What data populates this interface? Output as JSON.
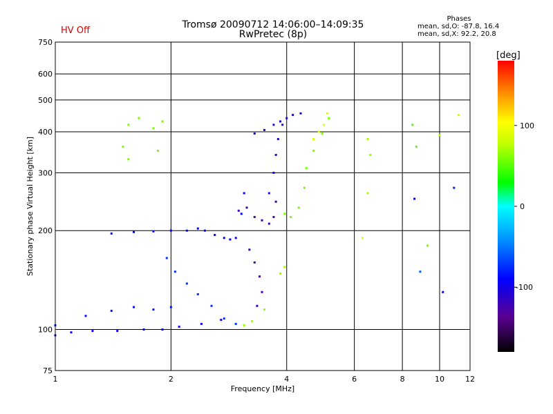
{
  "header": {
    "title_line1": "Tromsø 20090712 14:06:00–14:09:35",
    "title_line2": "RwPretec (8p)",
    "hv_status": "HV Off",
    "phases_heading": "Phases",
    "phases_line1": "mean, sd,O: -87.8, 16.4",
    "phases_line2": "mean, sd,X:  92.2, 20.8"
  },
  "chart_data": {
    "type": "scatter",
    "xlabel": "Frequency [MHz]",
    "ylabel": "Stationary phase Virtual Height [km]",
    "x_scale": "log",
    "y_scale": "log",
    "xlim": [
      1,
      12
    ],
    "ylim": [
      75,
      750
    ],
    "x_ticks": [
      1,
      2,
      4,
      6,
      8,
      10,
      12
    ],
    "y_ticks": [
      75,
      100,
      200,
      300,
      400,
      500,
      600,
      750
    ],
    "grid": true,
    "colorbar": {
      "label": "[deg]",
      "range": [
        -180,
        180
      ],
      "ticks": [
        -100,
        0,
        100
      ]
    },
    "series": [
      {
        "name": "",
        "points": [
          [
            1.0,
            96,
            -95
          ],
          [
            1.1,
            98,
            -95
          ],
          [
            1.25,
            99,
            -95
          ],
          [
            1.45,
            99,
            -95
          ],
          [
            1.7,
            100,
            -95
          ],
          [
            1.9,
            100,
            -95
          ],
          [
            2.1,
            102,
            -95
          ],
          [
            2.4,
            104,
            -95
          ],
          [
            2.7,
            107,
            -95
          ]
        ]
      },
      {
        "name": "",
        "points": [
          [
            1.0,
            103,
            -85
          ],
          [
            1.2,
            110,
            -85
          ],
          [
            1.4,
            114,
            -85
          ],
          [
            1.6,
            117,
            -85
          ],
          [
            1.8,
            115,
            -85
          ],
          [
            2.0,
            117,
            -85
          ]
        ]
      },
      {
        "name": "",
        "points": [
          [
            1.4,
            196,
            -95
          ],
          [
            1.6,
            198,
            -95
          ],
          [
            1.8,
            199,
            -95
          ],
          [
            2.0,
            200,
            -95
          ],
          [
            2.2,
            200,
            -95
          ],
          [
            2.35,
            203,
            -95
          ]
        ]
      },
      {
        "name": "",
        "points": [
          [
            2.45,
            200,
            -90
          ],
          [
            2.6,
            194,
            -90
          ],
          [
            2.75,
            190,
            -90
          ],
          [
            2.85,
            188,
            -90
          ],
          [
            2.95,
            190,
            -90
          ],
          [
            3.05,
            225,
            -90
          ],
          [
            3.1,
            260,
            -90
          ]
        ]
      },
      {
        "name": "",
        "points": [
          [
            1.95,
            165,
            -75
          ],
          [
            2.05,
            150,
            -75
          ],
          [
            2.2,
            138,
            -75
          ],
          [
            2.35,
            128,
            -75
          ],
          [
            2.55,
            118,
            -75
          ],
          [
            2.75,
            108,
            -75
          ],
          [
            2.95,
            104,
            -75
          ]
        ]
      },
      {
        "name": "",
        "points": [
          [
            3.0,
            230,
            -120
          ],
          [
            3.15,
            235,
            -120
          ],
          [
            3.3,
            220,
            -120
          ],
          [
            3.45,
            215,
            -120
          ],
          [
            3.6,
            210,
            -120
          ],
          [
            3.7,
            220,
            -120
          ],
          [
            3.75,
            245,
            -120
          ]
        ]
      },
      {
        "name": "",
        "points": [
          [
            3.2,
            175,
            -120
          ],
          [
            3.3,
            160,
            -120
          ],
          [
            3.4,
            145,
            -120
          ],
          [
            3.45,
            130,
            -120
          ],
          [
            3.35,
            118,
            -120
          ]
        ]
      },
      {
        "name": "",
        "points": [
          [
            3.6,
            260,
            -105
          ],
          [
            3.7,
            300,
            -105
          ],
          [
            3.75,
            340,
            -105
          ],
          [
            3.8,
            380,
            -105
          ],
          [
            3.9,
            420,
            -105
          ],
          [
            4.0,
            440,
            -105
          ],
          [
            4.15,
            450,
            -105
          ],
          [
            4.35,
            455,
            -105
          ]
        ]
      },
      {
        "name": "",
        "points": [
          [
            3.3,
            395,
            -110
          ],
          [
            3.5,
            405,
            -110
          ],
          [
            3.7,
            420,
            -110
          ],
          [
            3.85,
            430,
            -110
          ]
        ]
      },
      {
        "name": "",
        "points": [
          [
            3.95,
            225,
            60
          ],
          [
            4.1,
            220,
            60
          ],
          [
            4.3,
            235,
            60
          ],
          [
            4.45,
            270,
            60
          ],
          [
            4.5,
            310,
            60
          ],
          [
            4.7,
            350,
            60
          ],
          [
            4.95,
            395,
            60
          ],
          [
            5.15,
            440,
            60
          ]
        ]
      },
      {
        "name": "",
        "points": [
          [
            4.7,
            380,
            90
          ],
          [
            4.85,
            400,
            90
          ],
          [
            5.0,
            420,
            90
          ],
          [
            5.1,
            455,
            90
          ]
        ]
      },
      {
        "name": "",
        "points": [
          [
            3.85,
            148,
            70
          ],
          [
            3.95,
            155,
            70
          ],
          [
            3.5,
            115,
            70
          ],
          [
            3.25,
            106,
            70
          ],
          [
            3.1,
            103,
            70
          ]
        ]
      },
      {
        "name": "",
        "points": [
          [
            1.55,
            420,
            60
          ],
          [
            1.65,
            440,
            60
          ],
          [
            1.8,
            410,
            60
          ],
          [
            1.9,
            430,
            60
          ],
          [
            1.55,
            330,
            60
          ],
          [
            1.85,
            350,
            60
          ],
          [
            1.5,
            360,
            60
          ]
        ]
      },
      {
        "name": "",
        "points": [
          [
            6.5,
            380,
            70
          ],
          [
            6.6,
            340,
            70
          ],
          [
            6.5,
            260,
            70
          ],
          [
            8.5,
            420,
            50
          ],
          [
            8.7,
            360,
            50
          ],
          [
            8.6,
            250,
            -90
          ],
          [
            10.0,
            390,
            70
          ],
          [
            10.9,
            270,
            -80
          ],
          [
            11.2,
            450,
            80
          ],
          [
            6.3,
            190,
            90
          ],
          [
            8.9,
            150,
            -60
          ],
          [
            9.3,
            180,
            60
          ],
          [
            10.2,
            130,
            -90
          ]
        ]
      }
    ]
  }
}
